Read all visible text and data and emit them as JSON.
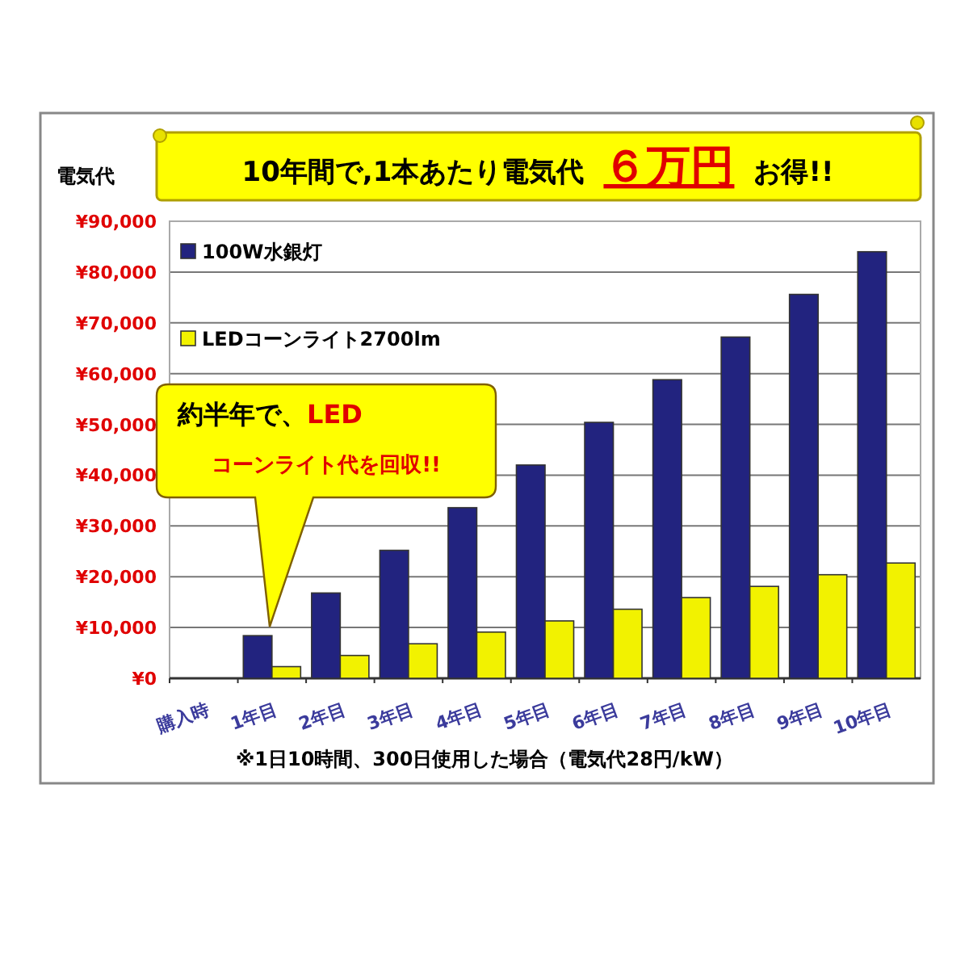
{
  "chart_data": {
    "type": "bar",
    "title": "10年間で,1本あたり電気代 ６万円 お得!!",
    "ylabel": "電気代",
    "categories": [
      "購入時",
      "1年目",
      "2年目",
      "3年目",
      "4年目",
      "5年目",
      "6年目",
      "7年目",
      "8年目",
      "9年目",
      "10年目"
    ],
    "series": [
      {
        "name": "100W水銀灯",
        "color": "#22237f",
        "values": [
          0,
          8400,
          16800,
          25200,
          33600,
          42000,
          50400,
          58800,
          67200,
          75600,
          84000
        ]
      },
      {
        "name": "LEDコーンライト2700lm",
        "color": "#f2f200",
        "values": [
          0,
          2300,
          4500,
          6800,
          9100,
          11300,
          13600,
          15900,
          18100,
          20400,
          22700
        ]
      }
    ],
    "ylim": [
      0,
      90000
    ],
    "yticks": [
      {
        "value": 0,
        "label": "¥0"
      },
      {
        "value": 10000,
        "label": "¥10,000"
      },
      {
        "value": 20000,
        "label": "¥20,000"
      },
      {
        "value": 30000,
        "label": "¥30,000"
      },
      {
        "value": 40000,
        "label": "¥40,000"
      },
      {
        "value": 50000,
        "label": "¥50,000"
      },
      {
        "value": 60000,
        "label": "¥60,000"
      },
      {
        "value": 70000,
        "label": "¥70,000"
      },
      {
        "value": 80000,
        "label": "¥80,000"
      },
      {
        "value": 90000,
        "label": "¥90,000"
      }
    ],
    "grid": "y",
    "legend": "top left",
    "annotations": [
      "約半年で、",
      "LED",
      "コーンライト代を回収!!",
      "※1日10時間、300日使用した場合（電気代28円/kW）"
    ]
  }
}
